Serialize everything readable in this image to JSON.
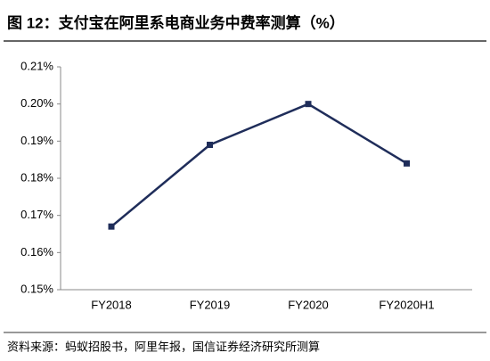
{
  "chart_data": {
    "type": "line",
    "title": "图 12：支付宝在阿里系电商业务中费率测算（%）",
    "source": "资料来源：蚂蚁招股书，阿里年报，国信证券经济研究所测算",
    "categories": [
      "FY2018",
      "FY2019",
      "FY2020",
      "FY2020H1"
    ],
    "values": [
      0.167,
      0.189,
      0.2,
      0.184
    ],
    "color": "#1f2d5a",
    "ylim": [
      0.15,
      0.21
    ],
    "yticks": [
      {
        "value": 0.15,
        "label": "0.15%"
      },
      {
        "value": 0.16,
        "label": "0.16%"
      },
      {
        "value": 0.17,
        "label": "0.17%"
      },
      {
        "value": 0.18,
        "label": "0.18%"
      },
      {
        "value": 0.19,
        "label": "0.19%"
      },
      {
        "value": 0.2,
        "label": "0.20%"
      },
      {
        "value": 0.21,
        "label": "0.21%"
      }
    ],
    "grid": false
  }
}
